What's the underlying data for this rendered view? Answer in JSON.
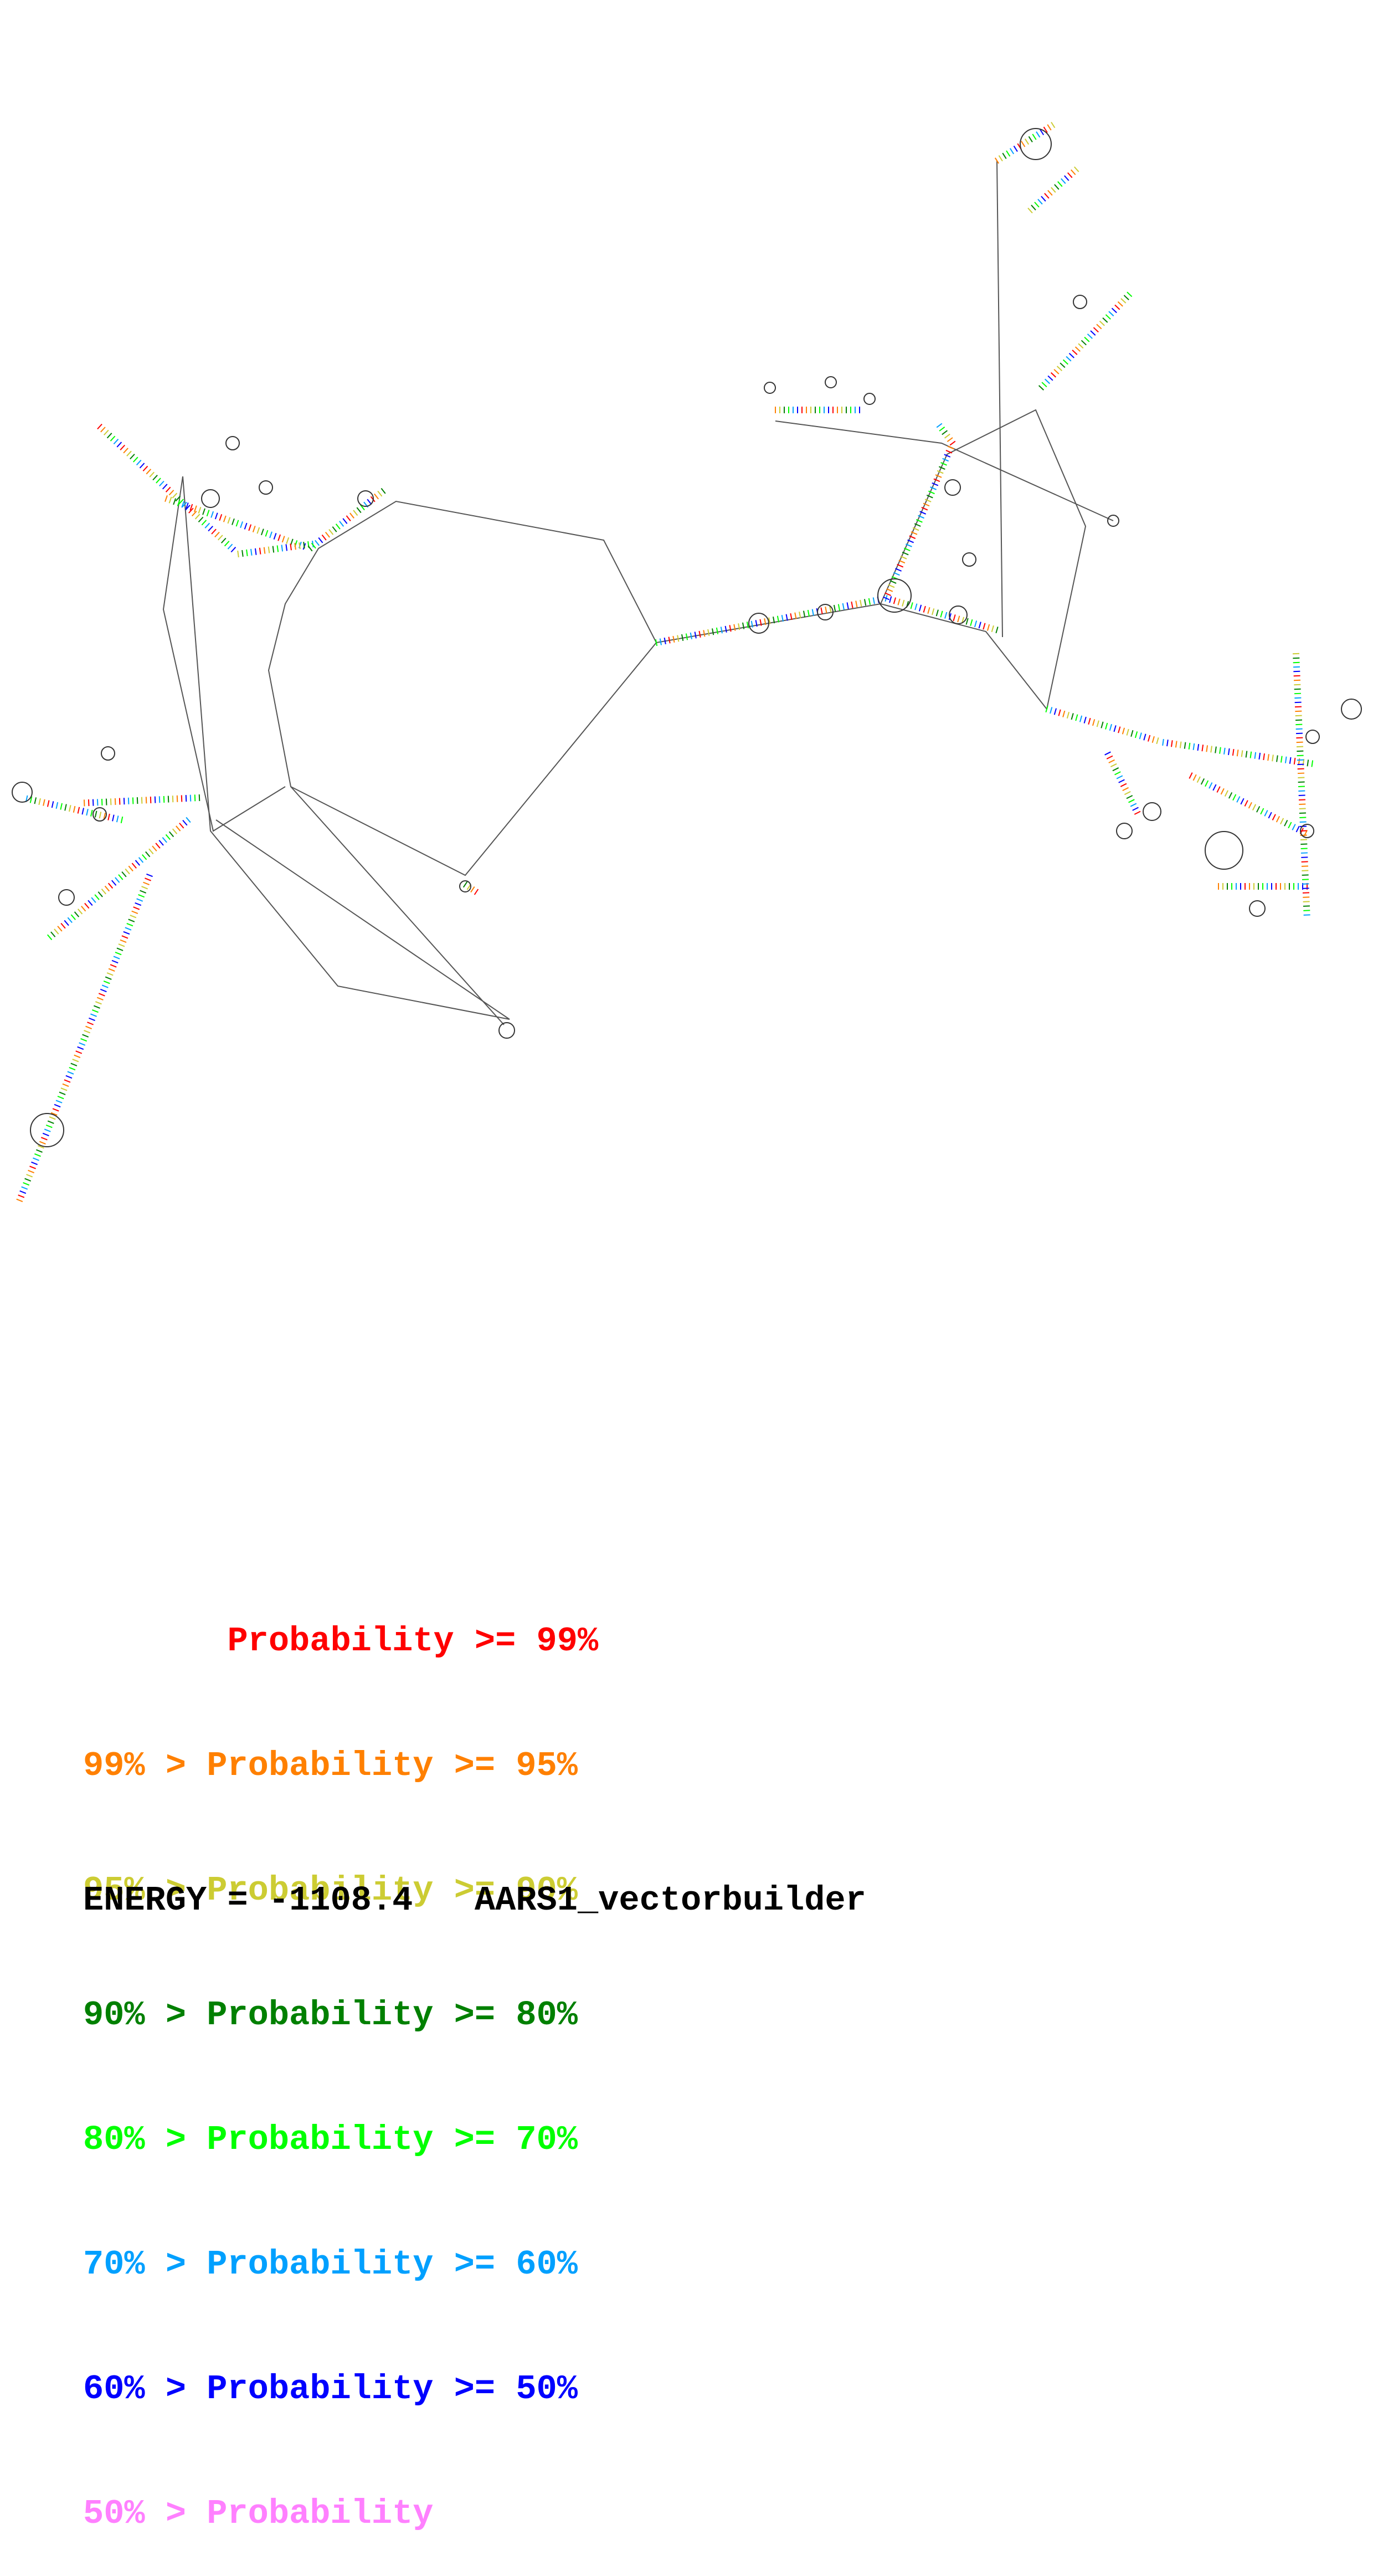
{
  "legend": [
    {
      "text": "       Probability >= 99%",
      "color": "#ff0000"
    },
    {
      "text": "99% > Probability >= 95%",
      "color": "#ff8000"
    },
    {
      "text": "95% > Probability >= 90%",
      "color": "#cccc33"
    },
    {
      "text": "90% > Probability >= 80%",
      "color": "#008000"
    },
    {
      "text": "80% > Probability >= 70%",
      "color": "#00ff00"
    },
    {
      "text": "70% > Probability >= 60%",
      "color": "#00a0ff"
    },
    {
      "text": "60% > Probability >= 50%",
      "color": "#0000ff"
    },
    {
      "text": "50% > Probability",
      "color": "#ff80ff"
    }
  ],
  "footer": {
    "energy": "ENERGY = -1108.4",
    "name": "AARS1_vectorbuilder"
  },
  "colors": {
    "backbone": "#555555",
    "loop": "#333333"
  }
}
